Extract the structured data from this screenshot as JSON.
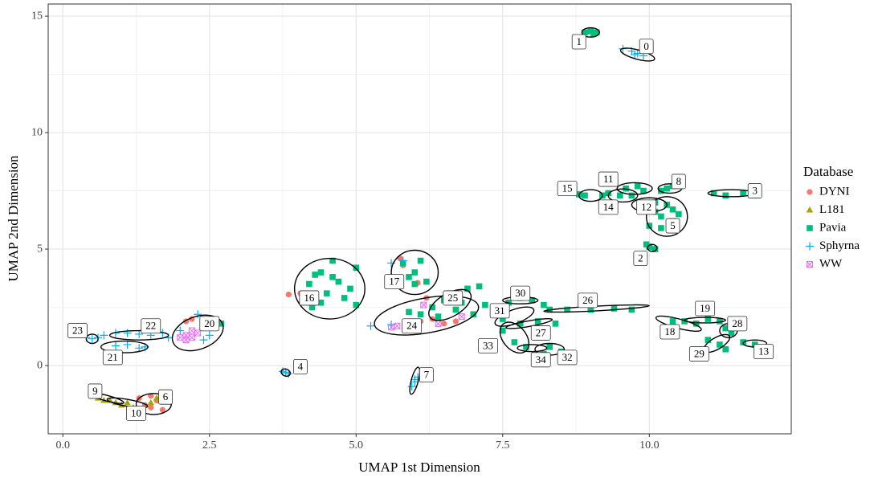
{
  "chart_data": {
    "type": "scatter",
    "x_label": "UMAP 1st Dimension",
    "y_label": "UMAP 2nd Dimension",
    "xlim": [
      -0.25,
      12.42
    ],
    "ylim": [
      -2.93,
      15.52
    ],
    "xticks": [
      {
        "value": 0,
        "label": "0.0"
      },
      2.5,
      {
        "value": 5,
        "label": "5.0"
      },
      7.5,
      {
        "value": 10,
        "label": "10.0"
      }
    ],
    "yticks": [
      0,
      5,
      10,
      15
    ],
    "grid": true,
    "legend_title": "Database",
    "legend_position": "right",
    "series": [
      {
        "name": "DYNI",
        "color": "#F8766D",
        "marker": "circle",
        "x": [
          1.3,
          1.4,
          1.5,
          1.6,
          1.7,
          1.5,
          2.1,
          2.2,
          2.5,
          3.85,
          4.05,
          5.75,
          5.8,
          6.05,
          6.1,
          6.3,
          6.5,
          6.2,
          6.7
        ],
        "values": [
          -1.4,
          -1.7,
          -1.8,
          -1.5,
          -1.9,
          -1.3,
          1.9,
          2.0,
          2.0,
          3.05,
          3.1,
          4.6,
          4.3,
          3.55,
          1.9,
          2.0,
          1.8,
          2.9,
          1.9
        ]
      },
      {
        "name": "L181",
        "color": "#A3A500",
        "marker": "triangle",
        "x": [
          0.5,
          0.6,
          0.7,
          0.8,
          0.9,
          1.0,
          1.1,
          1.2,
          1.5,
          1.6
        ],
        "values": [
          -1.3,
          -1.4,
          -1.5,
          -1.5,
          -1.6,
          -1.7,
          -1.6,
          -1.8,
          -1.6,
          -1.4
        ]
      },
      {
        "name": "Pavia",
        "color": "#00BF7D",
        "marker": "square",
        "x": [
          8.9,
          9.0,
          9.1,
          9.05,
          8.9,
          8.8,
          9.2,
          9.3,
          9.6,
          9.8,
          9.9,
          9.5,
          9.7,
          10.3,
          10.4,
          10.2,
          11.1,
          11.3,
          11.6,
          11.8,
          10.0,
          10.1,
          10.2,
          10.3,
          10.4,
          10.0,
          10.2,
          10.5,
          10.1,
          10.4,
          10.0,
          10.1,
          9.95,
          4.2,
          4.3,
          4.4,
          4.5,
          4.6,
          4.7,
          4.8,
          4.9,
          4.4,
          4.25,
          5.0,
          5.0,
          4.6,
          5.8,
          5.9,
          6.0,
          6.1,
          6.2,
          6.0,
          6.5,
          6.6,
          6.8,
          6.9,
          7.1,
          6.7,
          6.3,
          7.0,
          7.2,
          6.4,
          6.1,
          5.9,
          7.6,
          7.8,
          8.0,
          8.2,
          8.3,
          8.6,
          9.0,
          9.4,
          9.7,
          7.5,
          7.8,
          8.1,
          8.4,
          7.5,
          7.7,
          7.9,
          8.3,
          8.5,
          8.2,
          10.4,
          10.6,
          10.8,
          11.0,
          11.2,
          11.3,
          11.4,
          11.0,
          11.2,
          11.3,
          11.6,
          11.8,
          2.6,
          2.7
        ],
        "values": [
          14.3,
          14.35,
          14.3,
          14.25,
          7.3,
          7.35,
          7.3,
          7.4,
          7.6,
          7.7,
          7.5,
          7.3,
          7.3,
          7.6,
          7.7,
          7.5,
          7.4,
          7.3,
          7.4,
          7.4,
          6.8,
          6.6,
          6.4,
          6.9,
          6.2,
          6.0,
          5.9,
          6.5,
          7.0,
          6.7,
          5.1,
          5.0,
          5.2,
          3.5,
          3.9,
          2.7,
          3.1,
          4.5,
          3.6,
          2.9,
          3.3,
          4.0,
          2.5,
          2.6,
          4.2,
          3.8,
          4.4,
          3.8,
          4.0,
          4.5,
          3.6,
          3.5,
          2.8,
          3.1,
          2.7,
          3.3,
          3.4,
          2.4,
          2.5,
          2.2,
          2.6,
          2.1,
          2.2,
          2.3,
          2.7,
          2.9,
          2.8,
          2.6,
          2.4,
          2.4,
          2.4,
          2.45,
          2.4,
          2.0,
          1.8,
          1.9,
          1.8,
          1.5,
          1.0,
          0.8,
          0.8,
          0.6,
          0.5,
          1.9,
          1.9,
          1.8,
          2.0,
          1.9,
          1.6,
          1.4,
          1.1,
          0.9,
          0.7,
          1.0,
          0.9,
          1.7,
          1.8
        ]
      },
      {
        "name": "Sphyrna",
        "color": "#00B0F6",
        "marker": "plus",
        "x": [
          9.55,
          9.7,
          9.8,
          9.9,
          9.75,
          0.4,
          0.5,
          0.6,
          0.7,
          0.9,
          1.1,
          1.3,
          1.5,
          1.7,
          0.9,
          1.1,
          1.3,
          1.4,
          1.8,
          2.0,
          2.3,
          2.4,
          2.5,
          3.75,
          3.85,
          3.8,
          5.95,
          6.0,
          6.05,
          6.0,
          5.6,
          5.8,
          5.25,
          5.6
        ],
        "values": [
          13.6,
          13.5,
          13.4,
          13.3,
          13.35,
          1.2,
          1.15,
          1.2,
          1.3,
          1.4,
          1.4,
          1.35,
          1.3,
          1.4,
          0.85,
          0.9,
          0.75,
          0.8,
          1.2,
          1.5,
          2.2,
          1.1,
          1.3,
          -0.25,
          -0.35,
          -0.3,
          -0.9,
          -0.7,
          -0.5,
          -0.6,
          4.4,
          4.5,
          1.7,
          1.75
        ]
      },
      {
        "name": "WW",
        "color": "#E76BF3",
        "marker": "boxx",
        "x": [
          2.0,
          2.1,
          2.2,
          2.1,
          2.3,
          2.2,
          5.6,
          5.7,
          6.15,
          6.4,
          6.8
        ],
        "values": [
          1.2,
          1.3,
          1.5,
          1.1,
          1.4,
          1.2,
          1.65,
          1.7,
          2.6,
          1.8,
          2.1
        ]
      }
    ],
    "clusters": [
      {
        "label": "0",
        "x": 9.8,
        "y": 13.35,
        "rx": 0.3,
        "ry": 0.2,
        "angle": 15,
        "label_at": [
          9.95,
          13.7
        ]
      },
      {
        "label": "1",
        "x": 9.0,
        "y": 14.3,
        "rx": 0.15,
        "ry": 0.2,
        "angle": 0,
        "label_at": [
          8.8,
          13.9
        ]
      },
      {
        "label": "2",
        "x": 10.05,
        "y": 5.05,
        "rx": 0.08,
        "ry": 0.15,
        "angle": 0,
        "label_at": [
          9.85,
          4.6
        ]
      },
      {
        "label": "3",
        "x": 11.4,
        "y": 7.4,
        "rx": 0.4,
        "ry": 0.15,
        "angle": 0,
        "label_at": [
          11.8,
          7.5
        ]
      },
      {
        "label": "4",
        "x": 3.8,
        "y": -0.3,
        "rx": 0.08,
        "ry": 0.15,
        "angle": 20,
        "label_at": [
          4.05,
          -0.05
        ]
      },
      {
        "label": "5",
        "x": 10.3,
        "y": 6.4,
        "rx": 0.35,
        "ry": 0.85,
        "angle": 0,
        "label_at": [
          10.4,
          6.0
        ]
      },
      {
        "label": "6",
        "x": 1.55,
        "y": -1.65,
        "rx": 0.3,
        "ry": 0.45,
        "angle": 0,
        "label_at": [
          1.75,
          -1.35
        ]
      },
      {
        "label": "7",
        "x": 6.0,
        "y": -0.65,
        "rx": 0.06,
        "ry": 0.6,
        "angle": 15,
        "label_at": [
          6.2,
          -0.4
        ]
      },
      {
        "label": "8",
        "x": 10.35,
        "y": 7.6,
        "rx": 0.2,
        "ry": 0.2,
        "angle": 0,
        "label_at": [
          10.5,
          7.9
        ]
      },
      {
        "label": "9",
        "x": 0.75,
        "y": -1.4,
        "rx": 0.3,
        "ry": 0.12,
        "angle": 15,
        "label_at": [
          0.55,
          -1.1
        ]
      },
      {
        "label": "10",
        "x": 1.1,
        "y": -1.6,
        "rx": 0.35,
        "ry": 0.15,
        "angle": 10,
        "label_at": [
          1.25,
          -2.05
        ]
      },
      {
        "label": "11",
        "x": 9.75,
        "y": 7.6,
        "rx": 0.3,
        "ry": 0.25,
        "angle": 0,
        "label_at": [
          9.3,
          8.0
        ]
      },
      {
        "label": "12",
        "x": 10.0,
        "y": 6.9,
        "rx": 0.3,
        "ry": 0.3,
        "angle": 0,
        "label_at": [
          9.95,
          6.8
        ]
      },
      {
        "label": "13",
        "x": 11.8,
        "y": 0.95,
        "rx": 0.2,
        "ry": 0.15,
        "angle": 0,
        "label_at": [
          11.95,
          0.6
        ]
      },
      {
        "label": "14",
        "x": 9.55,
        "y": 7.3,
        "rx": 0.25,
        "ry": 0.28,
        "angle": 0,
        "label_at": [
          9.3,
          6.8
        ]
      },
      {
        "label": "15",
        "x": 9.0,
        "y": 7.3,
        "rx": 0.2,
        "ry": 0.25,
        "angle": 0,
        "label_at": [
          8.6,
          7.6
        ]
      },
      {
        "label": "16",
        "x": 4.55,
        "y": 3.3,
        "rx": 0.6,
        "ry": 1.3,
        "angle": 0,
        "label_at": [
          4.2,
          2.9
        ]
      },
      {
        "label": "17",
        "x": 6.0,
        "y": 4.0,
        "rx": 0.4,
        "ry": 0.95,
        "angle": 0,
        "label_at": [
          5.65,
          3.6
        ]
      },
      {
        "label": "18",
        "x": 10.5,
        "y": 1.8,
        "rx": 0.4,
        "ry": 0.2,
        "angle": 15,
        "label_at": [
          10.35,
          1.45
        ]
      },
      {
        "label": "19",
        "x": 10.95,
        "y": 1.95,
        "rx": 0.35,
        "ry": 0.12,
        "angle": 0,
        "label_at": [
          10.95,
          2.45
        ]
      },
      {
        "label": "20",
        "x": 2.3,
        "y": 1.4,
        "rx": 0.45,
        "ry": 0.7,
        "angle": -20,
        "label_at": [
          2.5,
          1.8
        ]
      },
      {
        "label": "21",
        "x": 1.05,
        "y": 0.8,
        "rx": 0.4,
        "ry": 0.25,
        "angle": 0,
        "label_at": [
          0.85,
          0.35
        ]
      },
      {
        "label": "22",
        "x": 1.3,
        "y": 1.3,
        "rx": 0.5,
        "ry": 0.2,
        "angle": 0,
        "label_at": [
          1.5,
          1.7
        ]
      },
      {
        "label": "23",
        "x": 0.5,
        "y": 1.15,
        "rx": 0.1,
        "ry": 0.2,
        "angle": 0,
        "label_at": [
          0.25,
          1.5
        ]
      },
      {
        "label": "24",
        "x": 6.2,
        "y": 2.15,
        "rx": 0.9,
        "ry": 0.75,
        "angle": -10,
        "label_at": [
          5.95,
          1.7
        ]
      },
      {
        "label": "25",
        "x": 6.6,
        "y": 2.6,
        "rx": 0.4,
        "ry": 0.5,
        "angle": -30,
        "label_at": [
          6.65,
          2.9
        ]
      },
      {
        "label": "26",
        "x": 9.1,
        "y": 2.45,
        "rx": 0.9,
        "ry": 0.1,
        "angle": -3,
        "label_at": [
          8.95,
          2.8
        ]
      },
      {
        "label": "27",
        "x": 7.95,
        "y": 1.8,
        "rx": 0.4,
        "ry": 0.12,
        "angle": -10,
        "label_at": [
          8.15,
          1.4
        ]
      },
      {
        "label": "28",
        "x": 11.35,
        "y": 1.5,
        "rx": 0.15,
        "ry": 0.3,
        "angle": 0,
        "label_at": [
          11.5,
          1.8
        ]
      },
      {
        "label": "29",
        "x": 11.15,
        "y": 0.95,
        "rx": 0.25,
        "ry": 0.25,
        "angle": -30,
        "label_at": [
          10.85,
          0.5
        ]
      },
      {
        "label": "30",
        "x": 7.8,
        "y": 2.8,
        "rx": 0.3,
        "ry": 0.15,
        "angle": 0,
        "label_at": [
          7.8,
          3.1
        ]
      },
      {
        "label": "31",
        "x": 7.7,
        "y": 2.1,
        "rx": 0.35,
        "ry": 0.3,
        "angle": -20,
        "label_at": [
          7.45,
          2.35
        ]
      },
      {
        "label": "32",
        "x": 8.3,
        "y": 0.7,
        "rx": 0.25,
        "ry": 0.25,
        "angle": 0,
        "label_at": [
          8.6,
          0.35
        ]
      },
      {
        "label": "33",
        "x": 7.7,
        "y": 1.2,
        "rx": 0.3,
        "ry": 0.5,
        "angle": 50,
        "label_at": [
          7.25,
          0.85
        ]
      },
      {
        "label": "34",
        "x": 8.0,
        "y": 0.75,
        "rx": 0.25,
        "ry": 0.15,
        "angle": 0,
        "label_at": [
          8.15,
          0.25
        ]
      }
    ]
  }
}
